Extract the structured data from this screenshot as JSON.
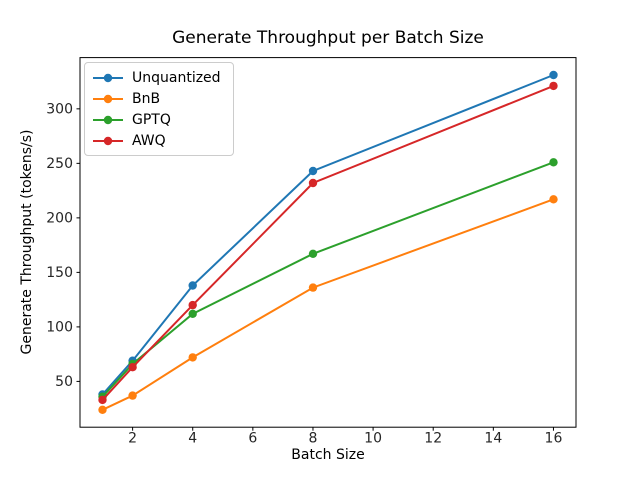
{
  "chart_data": {
    "type": "line",
    "title": "Generate Throughput per Batch Size",
    "xlabel": "Batch Size",
    "ylabel": "Generate Throughput (tokens/s)",
    "x": [
      1,
      2,
      4,
      8,
      16
    ],
    "series": [
      {
        "name": "Unquantized",
        "color": "#1f77b4",
        "values": [
          38,
          69,
          138,
          243,
          331
        ]
      },
      {
        "name": "BnB",
        "color": "#ff7f0e",
        "values": [
          24,
          37,
          72,
          136,
          217
        ]
      },
      {
        "name": "GPTQ",
        "color": "#2ca02c",
        "values": [
          36,
          66,
          112,
          167,
          251
        ]
      },
      {
        "name": "AWQ",
        "color": "#d62728",
        "values": [
          33,
          63,
          120,
          232,
          321
        ]
      }
    ],
    "xticks": [
      2,
      4,
      6,
      8,
      10,
      12,
      14,
      16
    ],
    "yticks": [
      50,
      100,
      150,
      200,
      250,
      300
    ],
    "xlim": [
      0.25,
      16.75
    ],
    "ylim": [
      8,
      347
    ],
    "grid": false,
    "legend_position": "upper left",
    "marker": "circle",
    "axis_color": "#000000",
    "tick_label_color": "#262626",
    "background_color": "#ffffff"
  }
}
